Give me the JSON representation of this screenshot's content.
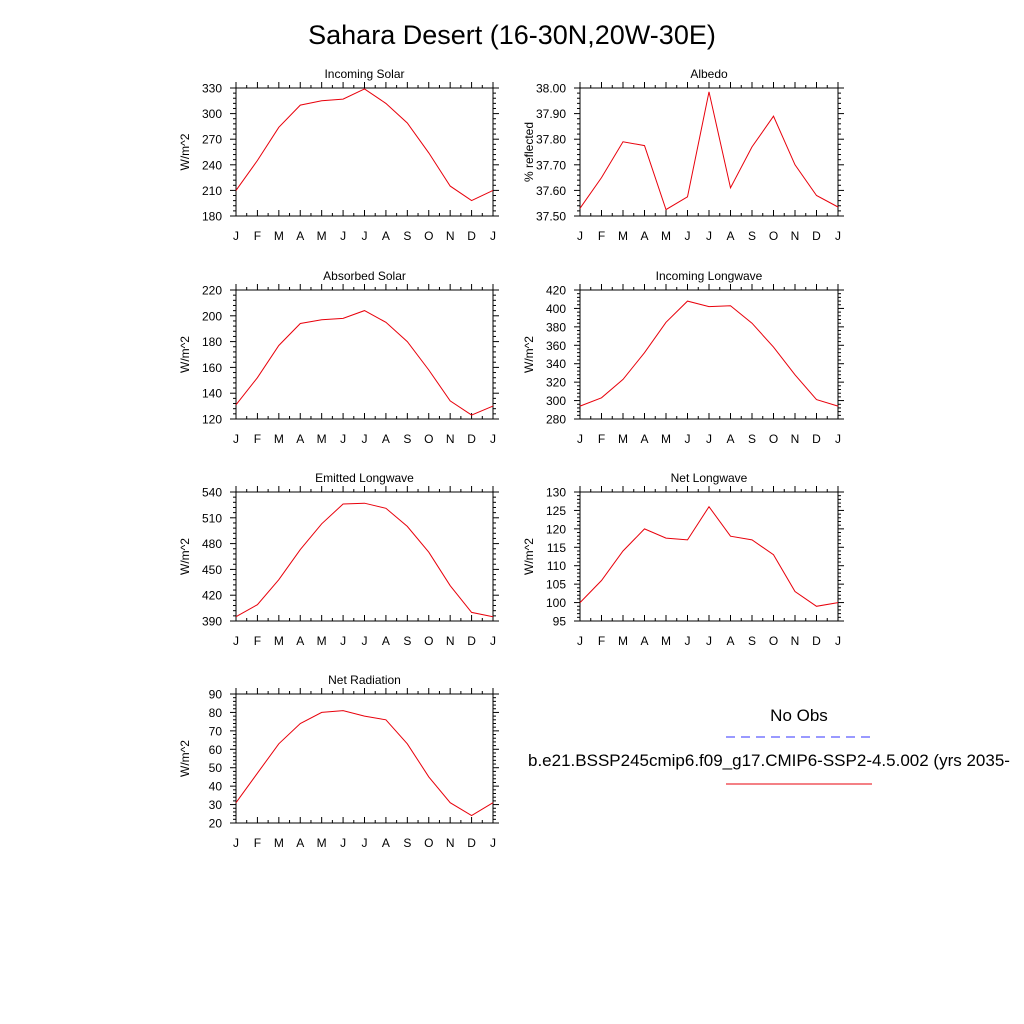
{
  "title": "Sahara Desert (16-30N,20W-30E)",
  "colors": {
    "series": "#e8000b",
    "obs": "#3333ff",
    "axis": "#000000"
  },
  "legend": {
    "obs_label": "No Obs",
    "model_label": "b.e21.BSSP245cmip6.f09_g17.CMIP6-SSP2-4.5.002 (yrs 2035-"
  },
  "chart_data": [
    {
      "type": "line",
      "title": "Incoming Solar",
      "ylabel": "W/m^2",
      "ylim": [
        180,
        330
      ],
      "yticks": [
        180,
        210,
        240,
        270,
        300,
        330
      ],
      "ytick_labels": [
        "180",
        "210",
        "240",
        "270",
        "300",
        "330"
      ],
      "categories": [
        "J",
        "F",
        "M",
        "A",
        "M",
        "J",
        "J",
        "A",
        "S",
        "O",
        "N",
        "D",
        "J"
      ],
      "values": [
        210,
        245,
        284,
        310,
        315,
        317,
        329,
        312,
        289,
        254,
        215,
        198,
        210
      ]
    },
    {
      "type": "line",
      "title": "Albedo",
      "ylabel": "% reflected",
      "ylim": [
        37.5,
        38.0
      ],
      "yticks": [
        37.5,
        37.6,
        37.7,
        37.8,
        37.9,
        38.0
      ],
      "ytick_labels": [
        "37.50",
        "37.60",
        "37.70",
        "37.80",
        "37.90",
        "38.00"
      ],
      "categories": [
        "J",
        "F",
        "M",
        "A",
        "M",
        "J",
        "J",
        "A",
        "S",
        "O",
        "N",
        "D",
        "J"
      ],
      "values": [
        37.53,
        37.65,
        37.79,
        37.775,
        37.525,
        37.575,
        37.985,
        37.61,
        37.77,
        37.89,
        37.7,
        37.58,
        37.535
      ]
    },
    {
      "type": "line",
      "title": "Absorbed Solar",
      "ylabel": "W/m^2",
      "ylim": [
        120,
        220
      ],
      "yticks": [
        120,
        140,
        160,
        180,
        200,
        220
      ],
      "ytick_labels": [
        "120",
        "140",
        "160",
        "180",
        "200",
        "220"
      ],
      "categories": [
        "J",
        "F",
        "M",
        "A",
        "M",
        "J",
        "J",
        "A",
        "S",
        "O",
        "N",
        "D",
        "J"
      ],
      "values": [
        131,
        152,
        177,
        194,
        197,
        198,
        204,
        195,
        180,
        158,
        134,
        123,
        130
      ]
    },
    {
      "type": "line",
      "title": "Incoming Longwave",
      "ylabel": "W/m^2",
      "ylim": [
        280,
        420
      ],
      "yticks": [
        280,
        300,
        320,
        340,
        360,
        380,
        400,
        420
      ],
      "ytick_labels": [
        "280",
        "300",
        "320",
        "340",
        "360",
        "380",
        "400",
        "420"
      ],
      "categories": [
        "J",
        "F",
        "M",
        "A",
        "M",
        "J",
        "J",
        "A",
        "S",
        "O",
        "N",
        "D",
        "J"
      ],
      "values": [
        294,
        303,
        323,
        352,
        385,
        408,
        402,
        403,
        384,
        358,
        328,
        301,
        294
      ]
    },
    {
      "type": "line",
      "title": "Emitted Longwave",
      "ylabel": "W/m^2",
      "ylim": [
        390,
        540
      ],
      "yticks": [
        390,
        420,
        450,
        480,
        510,
        540
      ],
      "ytick_labels": [
        "390",
        "420",
        "450",
        "480",
        "510",
        "540"
      ],
      "categories": [
        "J",
        "F",
        "M",
        "A",
        "M",
        "J",
        "J",
        "A",
        "S",
        "O",
        "N",
        "D",
        "J"
      ],
      "values": [
        395,
        409,
        438,
        473,
        503,
        526,
        527,
        521,
        500,
        470,
        431,
        400,
        395
      ]
    },
    {
      "type": "line",
      "title": "Net Longwave",
      "ylabel": "W/m^2",
      "ylim": [
        95,
        130
      ],
      "yticks": [
        95,
        100,
        105,
        110,
        115,
        120,
        125,
        130
      ],
      "ytick_labels": [
        "95",
        "100",
        "105",
        "110",
        "115",
        "120",
        "125",
        "130"
      ],
      "categories": [
        "J",
        "F",
        "M",
        "A",
        "M",
        "J",
        "J",
        "A",
        "S",
        "O",
        "N",
        "D",
        "J"
      ],
      "values": [
        100,
        106,
        114,
        120,
        117.5,
        117,
        126,
        118,
        117,
        113,
        103,
        99,
        100
      ]
    },
    {
      "type": "line",
      "title": "Net Radiation",
      "ylabel": "W/m^2",
      "ylim": [
        20,
        90
      ],
      "yticks": [
        20,
        30,
        40,
        50,
        60,
        70,
        80,
        90
      ],
      "ytick_labels": [
        "20",
        "30",
        "40",
        "50",
        "60",
        "70",
        "80",
        "90"
      ],
      "categories": [
        "J",
        "F",
        "M",
        "A",
        "M",
        "J",
        "J",
        "A",
        "S",
        "O",
        "N",
        "D",
        "J"
      ],
      "values": [
        31,
        47,
        63,
        74,
        80,
        81,
        78,
        76,
        63,
        45,
        31,
        24,
        31
      ]
    }
  ]
}
